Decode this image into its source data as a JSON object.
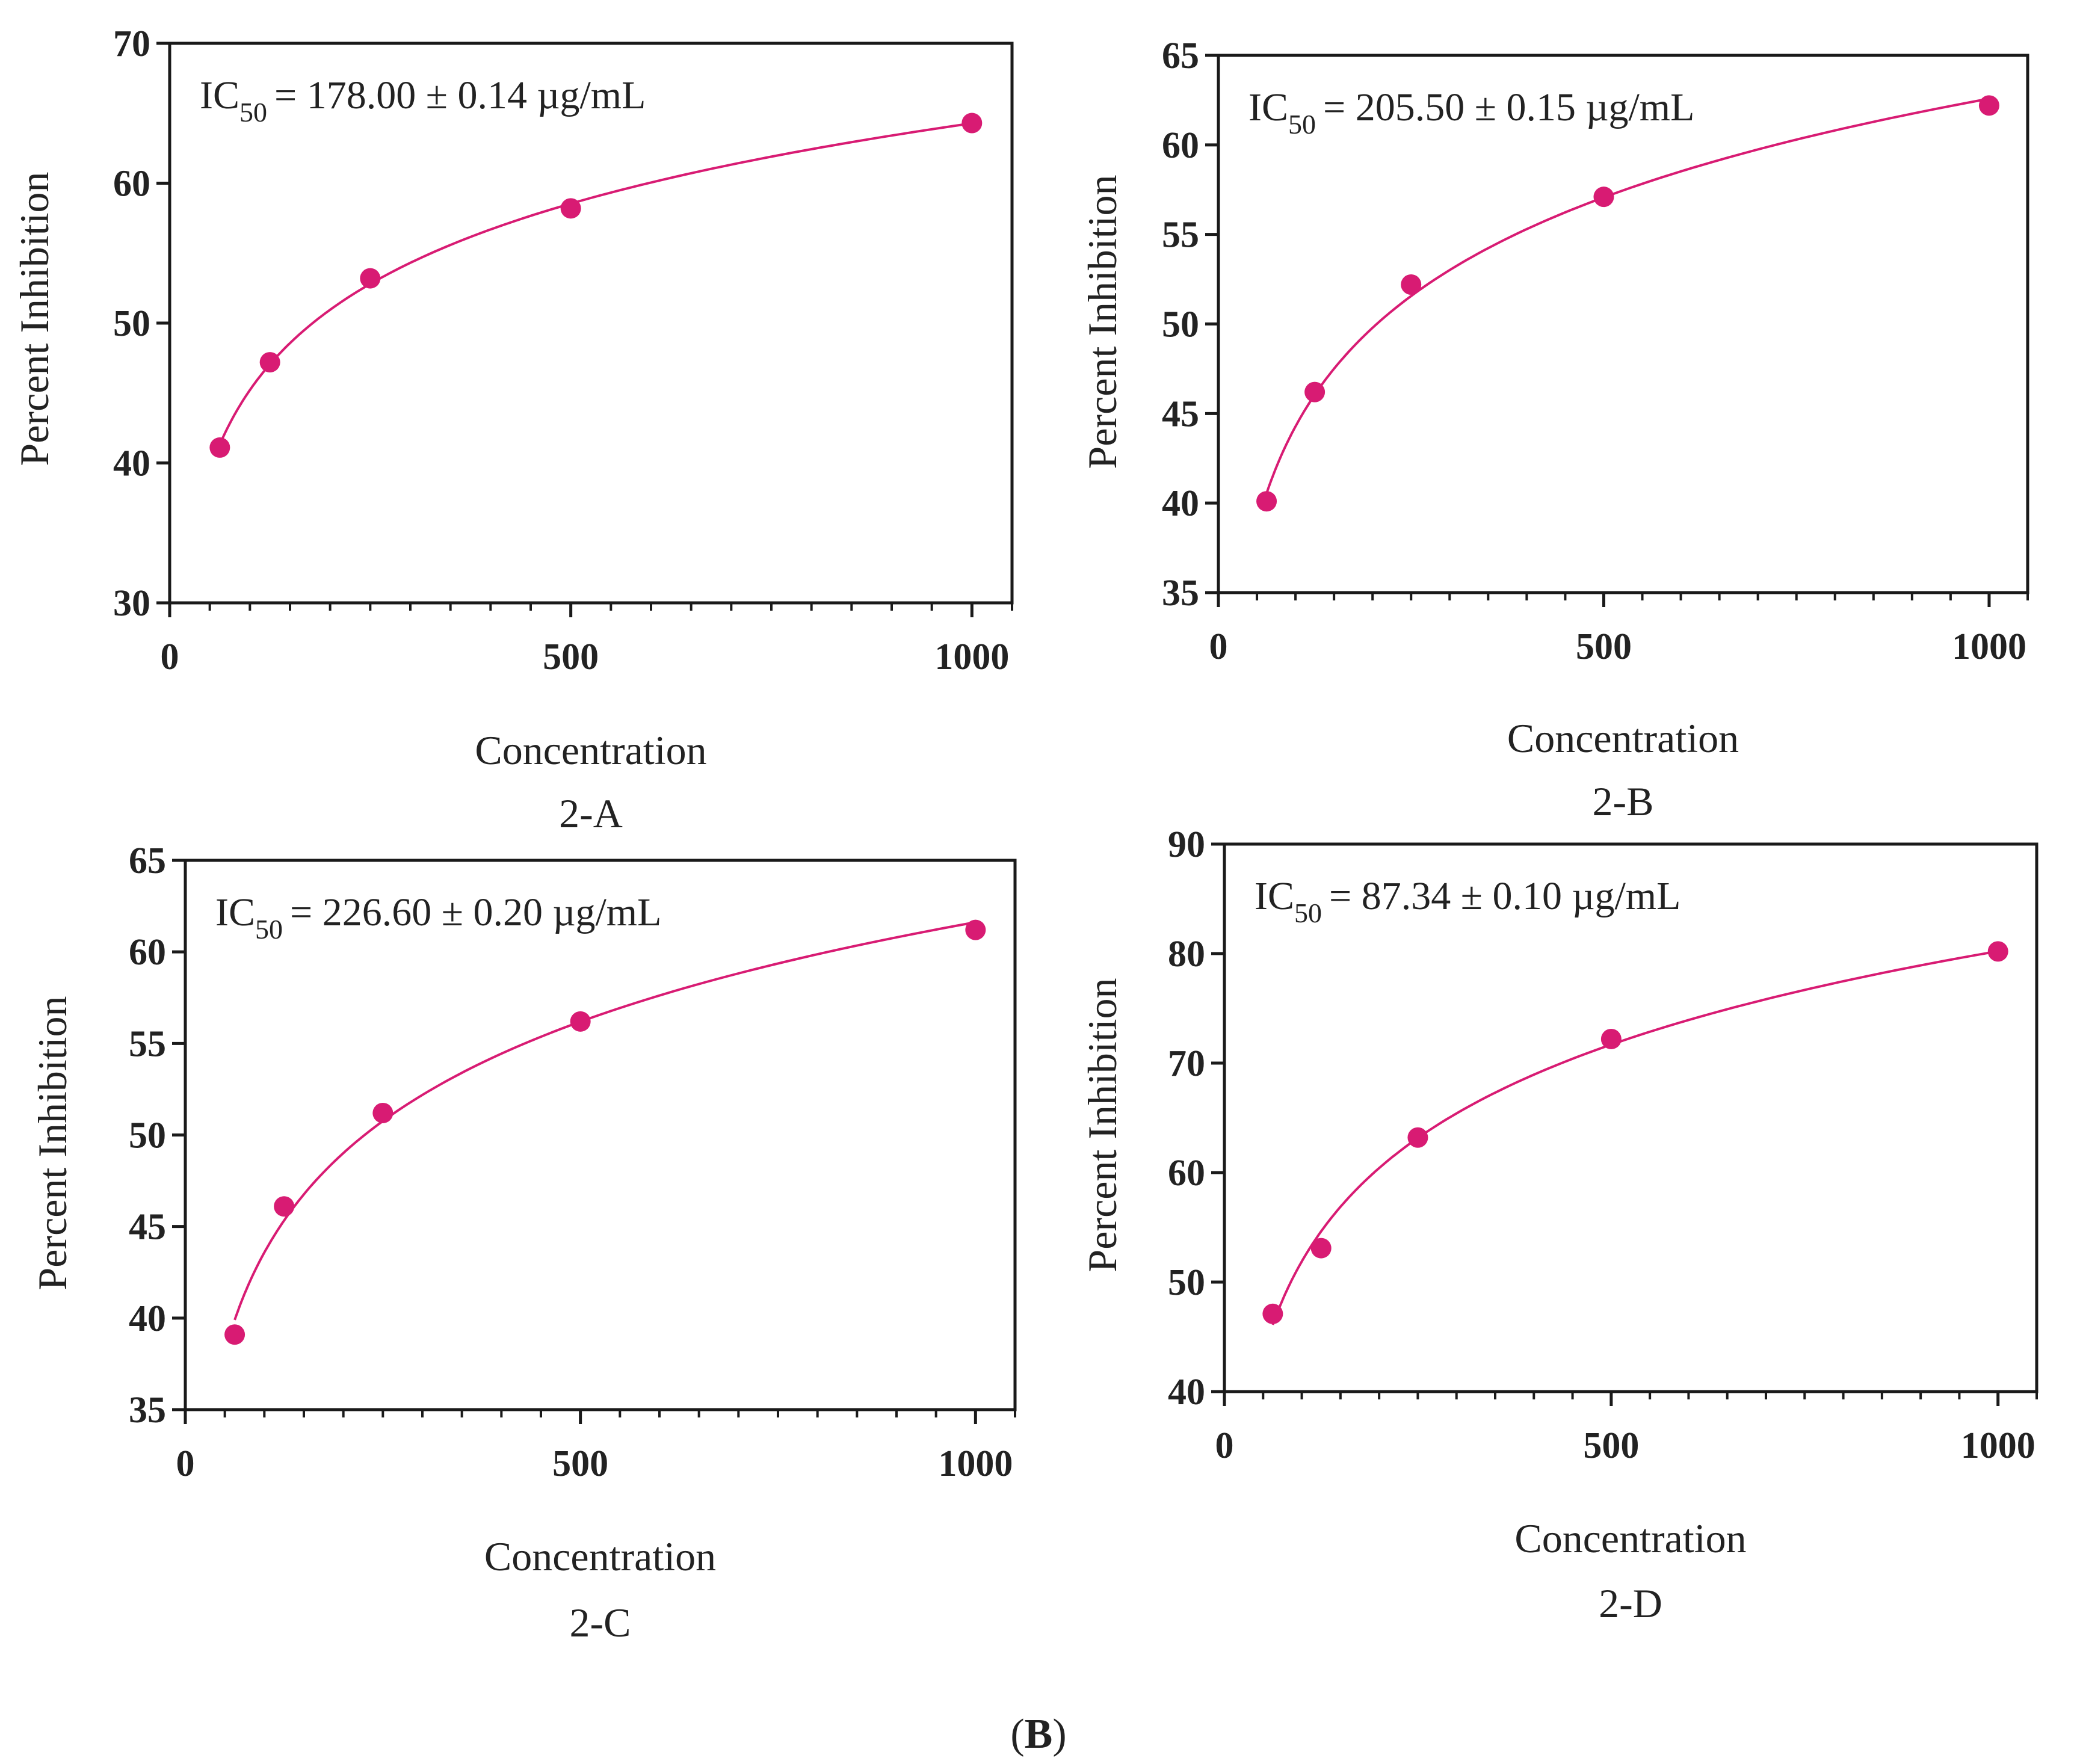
{
  "figure_label": {
    "open": "(",
    "letter": "B",
    "close": ")"
  },
  "colors": {
    "series": "#D81B73",
    "axis": "#1a1a1a",
    "text": "#222222"
  },
  "chart_data": [
    {
      "type": "scatter",
      "panel_label": "2-A",
      "xlabel": "Concentration",
      "ylabel": "Percent Inhibition",
      "annotation": {
        "prefix": "IC",
        "sub": "50",
        "text": "= 178.00 ± 0.14 µg/mL"
      },
      "xlim": [
        0,
        1050
      ],
      "ylim": [
        30,
        70
      ],
      "xticks": [
        0,
        500,
        1000
      ],
      "yticks": [
        30,
        40,
        50,
        60,
        70
      ],
      "x": [
        62.5,
        125,
        250,
        500,
        1000
      ],
      "y": [
        41.1,
        47.2,
        53.2,
        58.2,
        64.3
      ],
      "fit": {
        "type": "log",
        "x_range": [
          62.5,
          1000
        ]
      }
    },
    {
      "type": "scatter",
      "panel_label": "2-B",
      "xlabel": "Concentration",
      "ylabel": "Percent Inhibition",
      "annotation": {
        "prefix": "IC",
        "sub": "50",
        "text": "= 205.50 ± 0.15 µg/mL"
      },
      "xlim": [
        0,
        1050
      ],
      "ylim": [
        35,
        65
      ],
      "xticks": [
        0,
        500,
        1000
      ],
      "yticks": [
        35,
        40,
        45,
        50,
        55,
        60,
        65
      ],
      "x": [
        62.5,
        125,
        250,
        500,
        1000
      ],
      "y": [
        40.1,
        46.2,
        52.2,
        57.1,
        62.2
      ],
      "fit": {
        "type": "log",
        "x_range": [
          62.5,
          1000
        ]
      }
    },
    {
      "type": "scatter",
      "panel_label": "2-C",
      "xlabel": "Concentration",
      "ylabel": "Percent Inhibition",
      "annotation": {
        "prefix": "IC",
        "sub": "50",
        "text": "= 226.60 ± 0.20 µg/mL"
      },
      "xlim": [
        0,
        1050
      ],
      "ylim": [
        35,
        65
      ],
      "xticks": [
        0,
        500,
        1000
      ],
      "yticks": [
        35,
        40,
        45,
        50,
        55,
        60,
        65
      ],
      "x": [
        62.5,
        125,
        250,
        500,
        1000
      ],
      "y": [
        39.1,
        46.1,
        51.2,
        56.2,
        61.2
      ],
      "fit": {
        "type": "log",
        "x_range": [
          62.5,
          1000
        ]
      }
    },
    {
      "type": "scatter",
      "panel_label": "2-D",
      "xlabel": "Concentration",
      "ylabel": "Percent Inhibition",
      "annotation": {
        "prefix": "IC",
        "sub": "50",
        "text": "= 87.34 ± 0.10 µg/mL"
      },
      "xlim": [
        0,
        1050
      ],
      "ylim": [
        40,
        90
      ],
      "xticks": [
        0,
        500,
        1000
      ],
      "yticks": [
        40,
        50,
        60,
        70,
        80,
        90
      ],
      "x": [
        62.5,
        125,
        250,
        500,
        1000
      ],
      "y": [
        47.1,
        53.1,
        63.2,
        72.2,
        80.2
      ],
      "fit": {
        "type": "log",
        "x_range": [
          62.5,
          1000
        ]
      }
    }
  ]
}
